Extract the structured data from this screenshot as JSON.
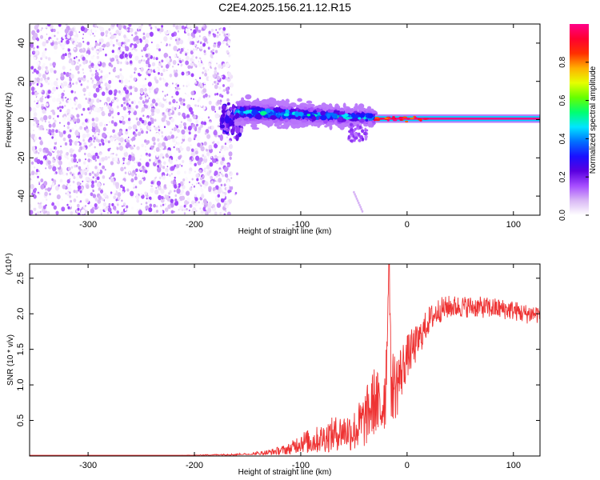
{
  "title": "C2E4.2025.156.21.12.R15",
  "chart_data": [
    {
      "type": "heatmap",
      "title": "C2E4.2025.156.21.12.R15",
      "xlabel": "Height of straight line (km)",
      "ylabel": "Frequency (Hz)",
      "xlim": [
        -355,
        125
      ],
      "ylim": [
        -50,
        50
      ],
      "xticks": [
        -300,
        -200,
        -100,
        0,
        100
      ],
      "xtick_labels": [
        "-300",
        "-200",
        "-100",
        "0",
        "100"
      ],
      "yticks": [
        -40,
        -20,
        0,
        20,
        40
      ],
      "ytick_labels": [
        "-40",
        "-20",
        "0",
        "20",
        "40"
      ],
      "grid": false,
      "colorbar": {
        "label": "Normalized spectral amplitude",
        "range": [
          0,
          1
        ],
        "ticks": [
          0.0,
          0.2,
          0.4,
          0.6,
          0.8
        ],
        "tick_labels": [
          "0.0",
          "0.2",
          "0.4",
          "0.6",
          "0.8"
        ],
        "colors": [
          "#ffffff",
          "#d9b8f5",
          "#a64dff",
          "#5a00e0",
          "#1a10ff",
          "#0070ff",
          "#00e5ff",
          "#00ff70",
          "#66ff00",
          "#e6ff00",
          "#ffb000",
          "#ff3000",
          "#ff0030",
          "#ff0088"
        ]
      },
      "regions": [
        {
          "name": "noise",
          "x_range": [
            -355,
            -165
          ],
          "freq_range": [
            -50,
            50
          ],
          "amplitude": [
            0.0,
            0.15
          ]
        },
        {
          "name": "transition",
          "x_range": [
            -175,
            -155
          ],
          "freq_range": [
            -10,
            10
          ],
          "amplitude": [
            0.1,
            0.3
          ]
        },
        {
          "name": "broad signal",
          "x_range": [
            -160,
            -30
          ],
          "center_freq": [
            4,
            1
          ],
          "spread_hz": [
            6,
            4
          ],
          "amplitude": [
            0.2,
            0.5
          ]
        },
        {
          "name": "tail",
          "x_range": [
            -55,
            -38
          ],
          "freq_range": [
            -12,
            -2
          ],
          "amplitude": [
            0.1,
            0.2
          ]
        },
        {
          "name": "faint streak",
          "x_range": [
            -50,
            -42
          ],
          "freq_range": [
            -48,
            -38
          ],
          "amplitude": [
            0.05,
            0.08
          ]
        },
        {
          "name": "narrow tone",
          "x_range": [
            -30,
            125
          ],
          "center_freq": 0.5,
          "amplitude": [
            0.9,
            1.0
          ]
        }
      ]
    },
    {
      "type": "line",
      "xlabel": "Height of straight line (km)",
      "ylabel": "SNR (10 * v/v)",
      "y_scale_label": "(x10⁴)",
      "xlim": [
        -355,
        125
      ],
      "ylim": [
        0,
        2.7
      ],
      "xticks": [
        -300,
        -200,
        -100,
        0,
        100
      ],
      "xtick_labels": [
        "-300",
        "-200",
        "-100",
        "0",
        "100"
      ],
      "yticks": [
        0.5,
        1.0,
        1.5,
        2.0,
        2.5
      ],
      "ytick_labels": [
        "0.5",
        "1.0",
        "1.5",
        "2.0",
        "2.5"
      ],
      "grid": false,
      "series": [
        {
          "name": "SNR",
          "color": "#ee3333",
          "x": [
            -355,
            -300,
            -250,
            -200,
            -170,
            -150,
            -130,
            -110,
            -100,
            -90,
            -80,
            -70,
            -60,
            -50,
            -40,
            -30,
            -25,
            -20,
            -17,
            -15,
            -10,
            -5,
            0,
            5,
            10,
            20,
            30,
            40,
            60,
            80,
            100,
            110,
            125
          ],
          "y": [
            0.0,
            0.0,
            0.0,
            0.01,
            0.02,
            0.02,
            0.05,
            0.1,
            0.2,
            0.2,
            0.25,
            0.3,
            0.35,
            0.35,
            0.5,
            0.8,
            0.6,
            1.0,
            2.7,
            1.0,
            1.0,
            1.2,
            1.4,
            1.5,
            1.6,
            1.9,
            2.05,
            2.1,
            2.1,
            2.08,
            2.05,
            2.0,
            2.0
          ],
          "noise": [
            0.0,
            0.0,
            0.0,
            0.005,
            0.01,
            0.02,
            0.04,
            0.08,
            0.15,
            0.18,
            0.2,
            0.25,
            0.25,
            0.3,
            0.4,
            0.5,
            0.5,
            0.6,
            0.0,
            0.5,
            0.5,
            0.4,
            0.3,
            0.3,
            0.25,
            0.2,
            0.18,
            0.16,
            0.15,
            0.15,
            0.14,
            0.14,
            0.14
          ]
        }
      ]
    }
  ]
}
